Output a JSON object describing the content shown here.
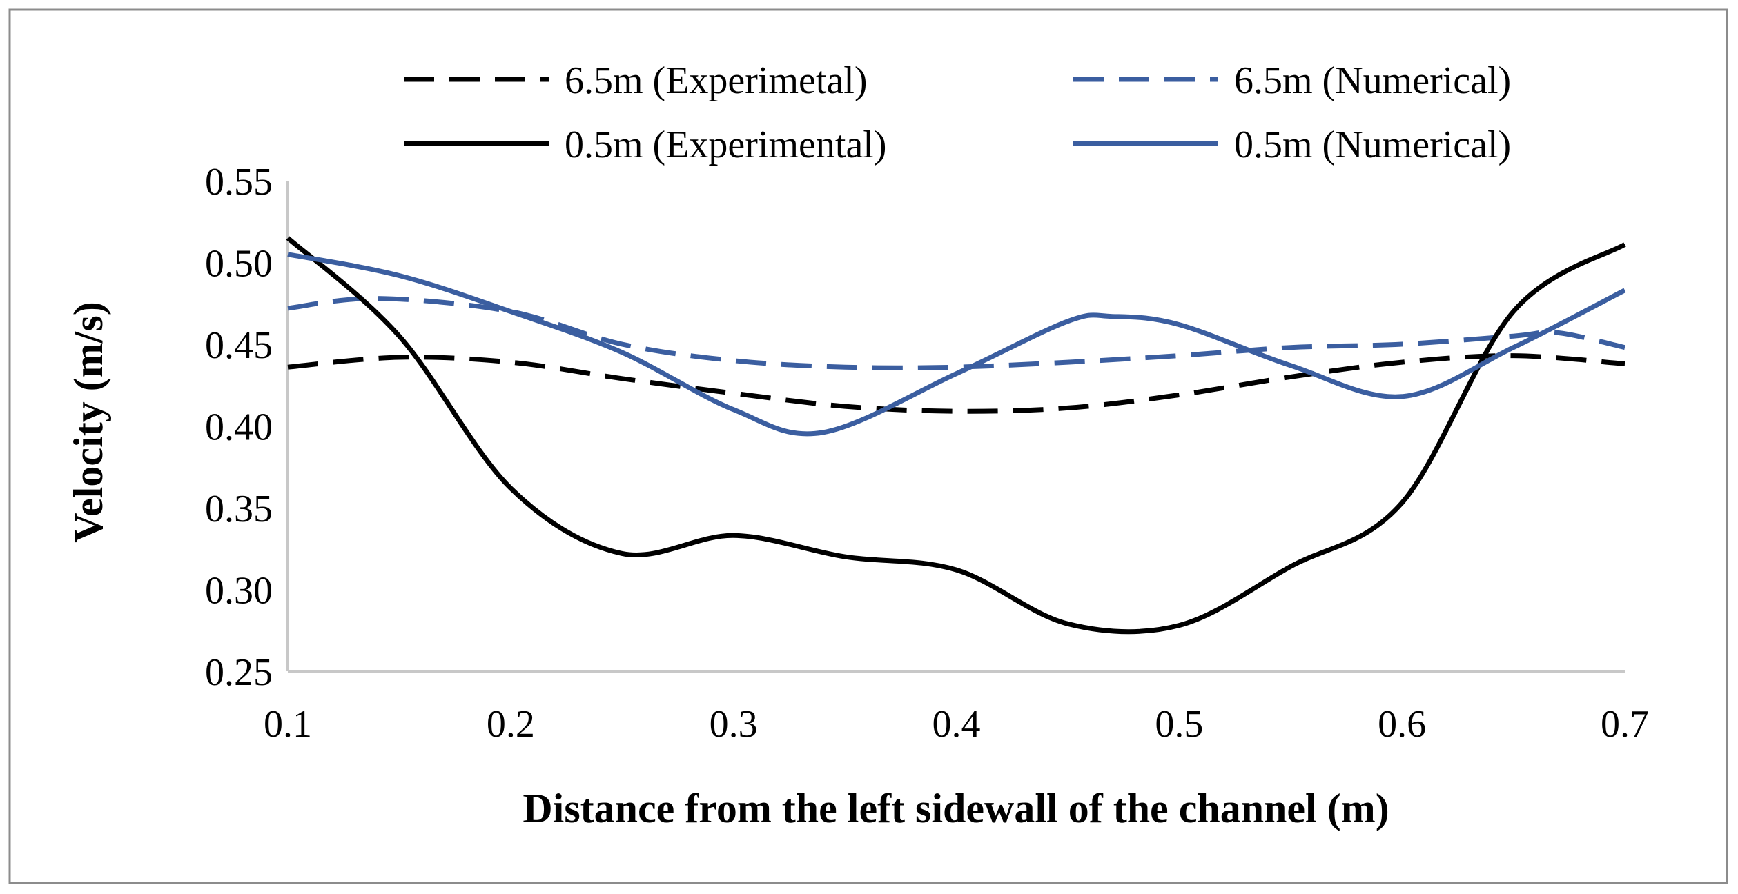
{
  "chart_data": {
    "type": "line",
    "title": "",
    "xlabel": "Distance from the left sidewall of the channel (m)",
    "ylabel": "Velocity (m/s)",
    "xlim": [
      0.1,
      0.7
    ],
    "ylim": [
      0.25,
      0.55
    ],
    "xticks": [
      "0.1",
      "0.2",
      "0.3",
      "0.4",
      "0.5",
      "0.6",
      "0.7"
    ],
    "yticks": [
      "0.25",
      "0.30",
      "0.35",
      "0.40",
      "0.45",
      "0.50",
      "0.55"
    ],
    "grid": false,
    "legend_position": "top",
    "series": [
      {
        "name": "6.5m (Experimetal)",
        "color": "#000000",
        "dash": "dashed",
        "points": [
          [
            0.1,
            0.436
          ],
          [
            0.15,
            0.442
          ],
          [
            0.2,
            0.439
          ],
          [
            0.25,
            0.429
          ],
          [
            0.3,
            0.42
          ],
          [
            0.35,
            0.412
          ],
          [
            0.4,
            0.409
          ],
          [
            0.45,
            0.411
          ],
          [
            0.5,
            0.419
          ],
          [
            0.55,
            0.43
          ],
          [
            0.6,
            0.439
          ],
          [
            0.65,
            0.443
          ],
          [
            0.7,
            0.438
          ]
        ]
      },
      {
        "name": "6.5m (Numerical)",
        "color": "#3b5ea0",
        "dash": "dashed",
        "points": [
          [
            0.1,
            0.472
          ],
          [
            0.14,
            0.478
          ],
          [
            0.2,
            0.47
          ],
          [
            0.25,
            0.45
          ],
          [
            0.3,
            0.44
          ],
          [
            0.35,
            0.436
          ],
          [
            0.4,
            0.436
          ],
          [
            0.45,
            0.439
          ],
          [
            0.5,
            0.443
          ],
          [
            0.55,
            0.448
          ],
          [
            0.6,
            0.45
          ],
          [
            0.65,
            0.455
          ],
          [
            0.67,
            0.457
          ],
          [
            0.7,
            0.448
          ]
        ]
      },
      {
        "name": "0.5m (Experimental)",
        "color": "#000000",
        "dash": "solid",
        "points": [
          [
            0.1,
            0.515
          ],
          [
            0.15,
            0.455
          ],
          [
            0.2,
            0.362
          ],
          [
            0.25,
            0.322
          ],
          [
            0.3,
            0.333
          ],
          [
            0.35,
            0.32
          ],
          [
            0.4,
            0.312
          ],
          [
            0.45,
            0.279
          ],
          [
            0.5,
            0.278
          ],
          [
            0.55,
            0.314
          ],
          [
            0.6,
            0.353
          ],
          [
            0.65,
            0.47
          ],
          [
            0.7,
            0.511
          ]
        ]
      },
      {
        "name": "0.5m (Numerical)",
        "color": "#3b5ea0",
        "dash": "solid",
        "points": [
          [
            0.1,
            0.505
          ],
          [
            0.15,
            0.492
          ],
          [
            0.2,
            0.47
          ],
          [
            0.25,
            0.445
          ],
          [
            0.3,
            0.41
          ],
          [
            0.34,
            0.396
          ],
          [
            0.4,
            0.432
          ],
          [
            0.45,
            0.464
          ],
          [
            0.47,
            0.467
          ],
          [
            0.5,
            0.462
          ],
          [
            0.55,
            0.437
          ],
          [
            0.6,
            0.418
          ],
          [
            0.65,
            0.448
          ],
          [
            0.7,
            0.483
          ]
        ]
      }
    ]
  }
}
